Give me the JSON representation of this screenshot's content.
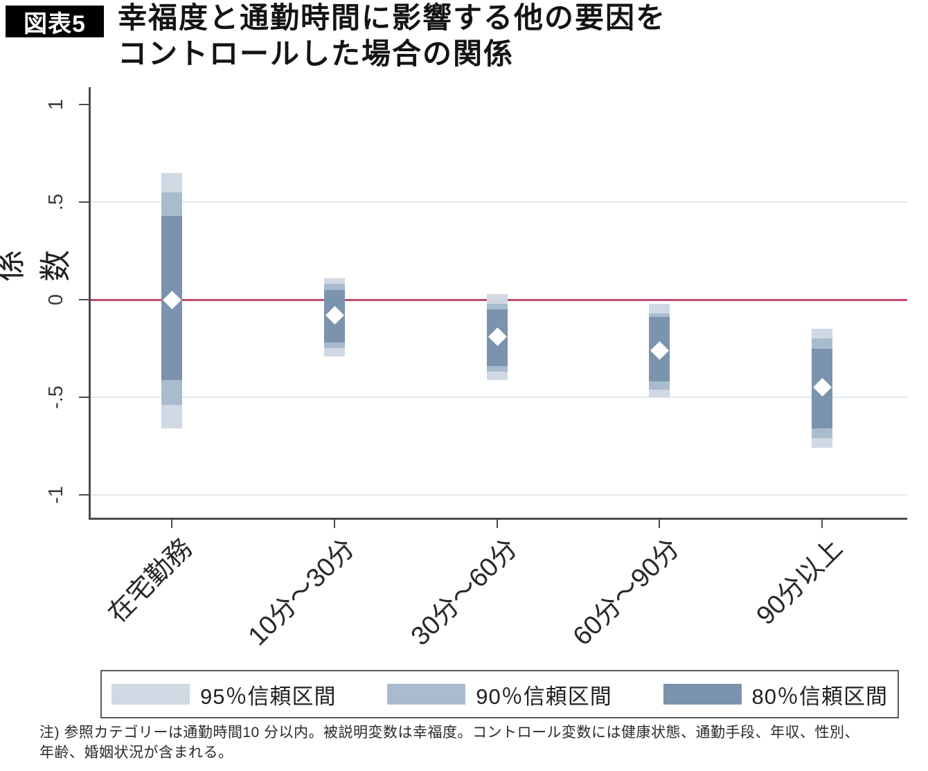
{
  "header": {
    "badge": "図表5",
    "title_line1": "幸福度と通勤時間に影響する他の要因を",
    "title_line2": "コントロールした場合の関係"
  },
  "chart_data": {
    "type": "bar",
    "subtype": "coefficient-confidence-interval-range",
    "title": "幸福度と通勤時間に影響する他の要因をコントロールした場合の関係",
    "xlabel": "",
    "ylabel": "係数",
    "categories": [
      "在宅勤務",
      "10分〜30分",
      "30分〜60分",
      "60分〜90分",
      "90分以上"
    ],
    "estimates": [
      0.0,
      -0.08,
      -0.19,
      -0.26,
      -0.45
    ],
    "series": [
      {
        "name": "95％信頼区間",
        "role": "ci95",
        "low": [
          -0.66,
          -0.29,
          -0.41,
          -0.5,
          -0.76
        ],
        "high": [
          0.65,
          0.11,
          0.03,
          -0.02,
          -0.15
        ]
      },
      {
        "name": "90％信頼区間",
        "role": "ci90",
        "low": [
          -0.54,
          -0.25,
          -0.37,
          -0.46,
          -0.71
        ],
        "high": [
          0.55,
          0.08,
          -0.02,
          -0.07,
          -0.2
        ]
      },
      {
        "name": "80％信頼区間",
        "role": "ci80",
        "low": [
          -0.41,
          -0.22,
          -0.34,
          -0.42,
          -0.66
        ],
        "high": [
          0.43,
          0.05,
          -0.05,
          -0.09,
          -0.25
        ]
      }
    ],
    "ylim": [
      -1,
      1
    ],
    "yticks": [
      1,
      0.5,
      0,
      -0.5,
      -1
    ],
    "ytick_labels": [
      "1",
      ".5",
      "0",
      "-.5",
      "-1"
    ],
    "gridlines": [
      0.5,
      -0.5,
      -1
    ],
    "zero_line": 0,
    "grid": true,
    "legend_position": "bottom",
    "marker_shape": "diamond",
    "colors": {
      "ci95": "#cfd8e3",
      "ci90": "#a9bccd",
      "ci80": "#7b93ac",
      "zero_line": "#c34a6a",
      "marker": "#ffffff",
      "grid": "#dfe9ec",
      "axis": "#4b4b4b"
    }
  },
  "note": {
    "line1": "注) 参照カテゴリーは通勤時間10 分以内。被説明変数は幸福度。コントロール変数には健康状態、通勤手段、年収、性別、",
    "line2": "年齢、婚姻状況が含まれる。"
  }
}
